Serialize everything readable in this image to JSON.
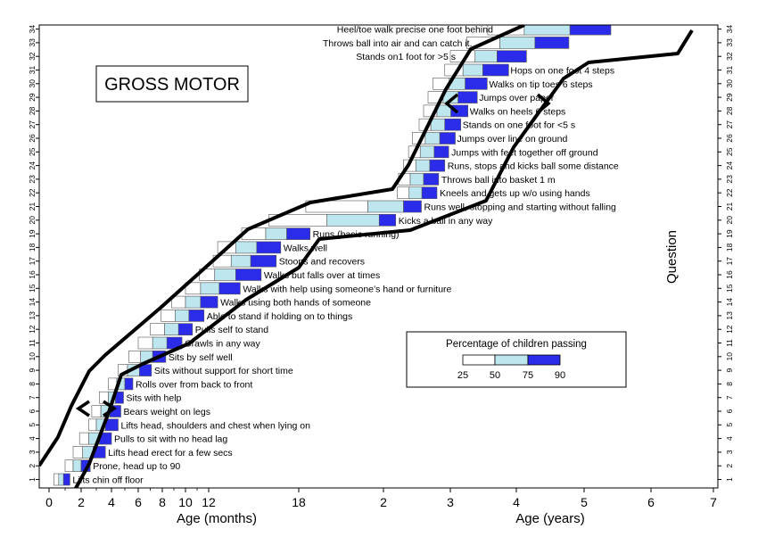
{
  "chart_data": {
    "type": "bar",
    "subtype": "developmental-milestone-range-bars",
    "title": "GROSS MOTOR",
    "ylabel": "Question",
    "xlabel_months": "Age (months)",
    "xlabel_years": "Age (years)",
    "xticks_months": [
      "0",
      "2",
      "4",
      "6",
      "8",
      "10",
      "12",
      "18"
    ],
    "xticks_years": [
      "2",
      "3",
      "4",
      "5",
      "6",
      "7"
    ],
    "yticks": [
      "1",
      "2",
      "3",
      "4",
      "5",
      "6",
      "7",
      "8",
      "9",
      "10",
      "11",
      "12",
      "13",
      "14",
      "15",
      "16",
      "17",
      "18",
      "19",
      "20",
      "21",
      "22",
      "23",
      "24",
      "25",
      "26",
      "27",
      "28",
      "29",
      "30",
      "31",
      "32",
      "33",
      "34"
    ],
    "xlim_months": [
      0,
      84
    ],
    "legend": {
      "title": "Percentage of children passing",
      "labels": [
        "25",
        "50",
        "75",
        "90"
      ],
      "colors": [
        "#ffffff",
        "#bde6ee",
        "#2b2bea"
      ],
      "position": "lower-right"
    },
    "series_percentiles": [
      "25",
      "50",
      "75",
      "90"
    ],
    "milestones": [
      {
        "q": 1,
        "label": "Lifts chin off  floor",
        "p25": 0.3,
        "p50": 0.6,
        "p75": 0.9,
        "p90": 1.3
      },
      {
        "q": 2,
        "label": "Prone, head up to 90",
        "p25": 1.0,
        "p50": 1.5,
        "p75": 2.0,
        "p90": 2.6
      },
      {
        "q": 3,
        "label": "Lifts head erect for a few secs",
        "p25": 1.5,
        "p50": 2.1,
        "p75": 2.8,
        "p90": 3.6
      },
      {
        "q": 4,
        "label": "Pulls to sit with no head lag",
        "p25": 1.9,
        "p50": 2.5,
        "p75": 3.2,
        "p90": 4.0
      },
      {
        "q": 5,
        "label": "Lifts head, shoulders and chest when lying on",
        "p25": 2.5,
        "p50": 3.0,
        "p75": 3.6,
        "p90": 4.5
      },
      {
        "q": 6,
        "label": "Bears weight on legs",
        "p25": 2.7,
        "p50": 3.3,
        "p75": 3.9,
        "p90": 4.7
      },
      {
        "q": 7,
        "label": "Sits with help",
        "p25": 3.2,
        "p50": 3.8,
        "p75": 4.3,
        "p90": 4.9
      },
      {
        "q": 8,
        "label": "Rolls over from back to front",
        "p25": 3.8,
        "p50": 4.4,
        "p75": 5.0,
        "p90": 5.6
      },
      {
        "q": 9,
        "label": "Sits without support for short time",
        "p25": 4.5,
        "p50": 5.2,
        "p75": 6.1,
        "p90": 7.1
      },
      {
        "q": 10,
        "label": "Sits by self  well",
        "p25": 5.3,
        "p50": 6.2,
        "p75": 7.2,
        "p90": 8.3
      },
      {
        "q": 11,
        "label": "Crawls in any way",
        "p25": 6.0,
        "p50": 7.2,
        "p75": 8.4,
        "p90": 9.7
      },
      {
        "q": 12,
        "label": "Pulls self to stand",
        "p25": 7.0,
        "p50": 8.2,
        "p75": 9.4,
        "p90": 10.6
      },
      {
        "q": 13,
        "label": "Able to stand if holding on to things",
        "p25": 7.9,
        "p50": 9.1,
        "p75": 10.3,
        "p90": 11.6
      },
      {
        "q": 14,
        "label": "Walks using both hands of someone",
        "p25": 8.8,
        "p50": 10.0,
        "p75": 11.3,
        "p90": 12.6
      },
      {
        "q": 15,
        "label": "Walks with help using someone’s hand or furniture",
        "p25": 10.0,
        "p50": 11.3,
        "p75": 12.7,
        "p90": 14.1
      },
      {
        "q": 16,
        "label": "Walks but falls over at times",
        "p25": 11.2,
        "p50": 12.4,
        "p75": 13.8,
        "p90": 15.5
      },
      {
        "q": 17,
        "label": "Stoops and recovers",
        "p25": 12.3,
        "p50": 13.5,
        "p75": 14.8,
        "p90": 16.5
      },
      {
        "q": 18,
        "label": "Walks well",
        "p25": 12.6,
        "p50": 13.8,
        "p75": 15.2,
        "p90": 16.8
      },
      {
        "q": 19,
        "label": "Runs (basic running)",
        "p25": 14.2,
        "p50": 15.8,
        "p75": 17.2,
        "p90": 18.8
      },
      {
        "q": 20,
        "label": "Kicks a ball in any way",
        "p25": 16.0,
        "p50": 20.0,
        "p75": 23.7,
        "p90": 26.2
      },
      {
        "q": 21,
        "label": "Runs well, stopping and starting without falling",
        "p25": 18.5,
        "p50": 22.9,
        "p75": 27.6,
        "p90": 30.8
      },
      {
        "q": 22,
        "label": "Kneels and gets up w/o using hands",
        "p25": 26.5,
        "p50": 28.6,
        "p75": 30.9,
        "p90": 33.6
      },
      {
        "q": 23,
        "label": "Throws ball into basket 1 m",
        "p25": 26.7,
        "p50": 28.8,
        "p75": 31.2,
        "p90": 33.9
      },
      {
        "q": 24,
        "label": "Runs, stops and kicks ball some distance",
        "p25": 27.6,
        "p50": 29.8,
        "p75": 32.3,
        "p90": 35.0
      },
      {
        "q": 25,
        "label": "Jumps with feet together off ground",
        "p25": 28.5,
        "p50": 30.6,
        "p75": 33.1,
        "p90": 35.7
      },
      {
        "q": 26,
        "label": "Jumps over line on ground",
        "p25": 29.2,
        "p50": 31.5,
        "p75": 34.1,
        "p90": 36.9
      },
      {
        "q": 27,
        "label": "Stands on one foot for <5 s",
        "p25": 30.4,
        "p50": 32.5,
        "p75": 35.0,
        "p90": 37.9
      },
      {
        "q": 28,
        "label": "Walks on heels 6 steps",
        "p25": 31.2,
        "p50": 33.6,
        "p75": 36.1,
        "p90": 39.2
      },
      {
        "q": 29,
        "label": "Jumps over paper",
        "p25": 32.0,
        "p50": 34.7,
        "p75": 37.4,
        "p90": 40.9
      },
      {
        "q": 30,
        "label": "Walks on tip toes 6 steps",
        "p25": 32.9,
        "p50": 35.8,
        "p75": 38.7,
        "p90": 42.7
      },
      {
        "q": 31,
        "label": "Hops on one foot 4 steps",
        "p25": 35.0,
        "p50": 38.3,
        "p75": 41.9,
        "p90": 46.6
      },
      {
        "q": 32,
        "label": "Stands on1 foot for >5 s",
        "p25": 36.0,
        "p50": 40.5,
        "p75": 44.5,
        "p90": 49.8
      },
      {
        "q": 33,
        "label": "Throws ball into air and can catch it.",
        "p25": 39.0,
        "p50": 45.0,
        "p75": 51.3,
        "p90": 57.3
      },
      {
        "q": 34,
        "label": "Heel/toe walk precise one foot behind",
        "p25": 42.8,
        "p50": 49.4,
        "p75": 57.5,
        "p90": 64.8
      }
    ]
  }
}
